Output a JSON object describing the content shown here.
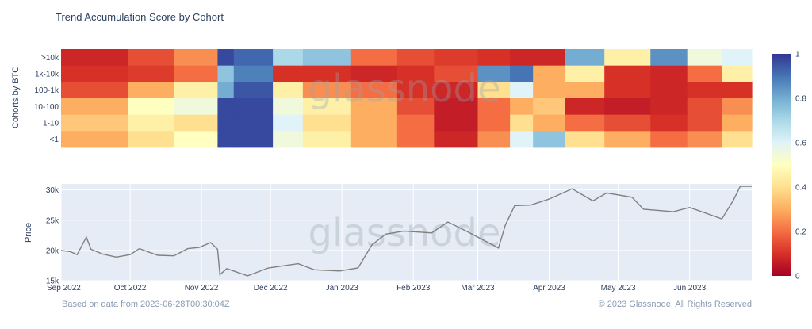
{
  "title": "Trend Accumulation Score by Cohort",
  "watermark": "glassnode",
  "footer": {
    "based_on": "Based on data from 2023-06-28T00:30:04Z",
    "copyright": "© 2023 Glassnode. All Rights Reserved"
  },
  "chart_data": [
    {
      "type": "heatmap",
      "ylabel": "Cohorts by BTC",
      "rows": [
        ">10k",
        "1k-10k",
        "100-1k",
        "10-100",
        "1-10",
        "<1"
      ],
      "x_start": "2022-09-01",
      "x_end": "2023-06-28",
      "zlim": [
        0,
        1
      ],
      "colorbar_ticks": [
        "0",
        "0.2",
        "0.4",
        "0.6",
        "0.8",
        "1"
      ],
      "colorscale": [
        "#a50026",
        "#d73027",
        "#f46d43",
        "#fdae61",
        "#fee090",
        "#ffffbf",
        "#e0f3f8",
        "#abd9e9",
        "#74add1",
        "#4575b4",
        "#313695"
      ],
      "segments": [
        {
          "end": "2022-09-30",
          "values": [
            0.08,
            0.1,
            0.15,
            0.3,
            0.35,
            0.3
          ]
        },
        {
          "end": "2022-10-20",
          "values": [
            0.15,
            0.12,
            0.3,
            0.5,
            0.45,
            0.4
          ]
        },
        {
          "end": "2022-11-08",
          "values": [
            0.25,
            0.2,
            0.45,
            0.55,
            0.4,
            0.5
          ]
        },
        {
          "end": "2022-11-15",
          "values": [
            0.97,
            0.75,
            0.8,
            0.97,
            0.97,
            0.97
          ]
        },
        {
          "end": "2022-12-02",
          "values": [
            0.92,
            0.88,
            0.95,
            0.97,
            0.97,
            0.97
          ]
        },
        {
          "end": "2022-12-15",
          "values": [
            0.7,
            0.1,
            0.45,
            0.55,
            0.6,
            0.55
          ]
        },
        {
          "end": "2023-01-05",
          "values": [
            0.75,
            0.1,
            0.25,
            0.45,
            0.4,
            0.45
          ]
        },
        {
          "end": "2023-01-25",
          "values": [
            0.2,
            0.08,
            0.2,
            0.3,
            0.3,
            0.3
          ]
        },
        {
          "end": "2023-02-10",
          "values": [
            0.15,
            0.1,
            0.1,
            0.15,
            0.2,
            0.2
          ]
        },
        {
          "end": "2023-03-01",
          "values": [
            0.12,
            0.15,
            0.08,
            0.06,
            0.06,
            0.08
          ]
        },
        {
          "end": "2023-03-15",
          "values": [
            0.1,
            0.85,
            0.4,
            0.2,
            0.2,
            0.25
          ]
        },
        {
          "end": "2023-03-25",
          "values": [
            0.08,
            0.9,
            0.6,
            0.3,
            0.4,
            0.6
          ]
        },
        {
          "end": "2023-04-08",
          "values": [
            0.08,
            0.3,
            0.3,
            0.35,
            0.3,
            0.75
          ]
        },
        {
          "end": "2023-04-25",
          "values": [
            0.8,
            0.45,
            0.3,
            0.08,
            0.2,
            0.4
          ]
        },
        {
          "end": "2023-05-15",
          "values": [
            0.45,
            0.1,
            0.1,
            0.06,
            0.15,
            0.3
          ]
        },
        {
          "end": "2023-05-31",
          "values": [
            0.85,
            0.08,
            0.08,
            0.08,
            0.1,
            0.2
          ]
        },
        {
          "end": "2023-06-15",
          "values": [
            0.55,
            0.2,
            0.1,
            0.15,
            0.15,
            0.25
          ]
        },
        {
          "end": "2023-06-28",
          "values": [
            0.6,
            0.45,
            0.1,
            0.25,
            0.3,
            0.4
          ]
        }
      ]
    },
    {
      "type": "line",
      "ylabel": "Price",
      "ylim": [
        15000,
        31000
      ],
      "y_ticks": [
        15000,
        20000,
        25000,
        30000
      ],
      "y_tick_labels": [
        "15k",
        "20k",
        "25k",
        "30k"
      ],
      "x_tick_dates": [
        "2022-09-01",
        "2022-10-01",
        "2022-11-01",
        "2022-12-01",
        "2023-01-01",
        "2023-02-01",
        "2023-03-01",
        "2023-04-01",
        "2023-05-01",
        "2023-06-01"
      ],
      "x_tick_labels": [
        "Sep 2022",
        "Oct 2022",
        "Nov 2022",
        "Dec 2022",
        "Jan 2023",
        "Feb 2023",
        "Mar 2023",
        "Apr 2023",
        "May 2023",
        "Jun 2023"
      ],
      "line_color": "#808080",
      "series": [
        {
          "x": [
            "2022-09-01",
            "2022-09-05",
            "2022-09-08",
            "2022-09-12",
            "2022-09-14",
            "2022-09-19",
            "2022-09-25",
            "2022-10-01",
            "2022-10-05",
            "2022-10-13",
            "2022-10-20",
            "2022-10-26",
            "2022-10-31",
            "2022-11-05",
            "2022-11-08",
            "2022-11-09",
            "2022-11-12",
            "2022-11-21",
            "2022-11-30",
            "2022-12-13",
            "2022-12-20",
            "2022-12-31",
            "2023-01-08",
            "2023-01-14",
            "2023-01-20",
            "2023-01-28",
            "2023-02-09",
            "2023-02-16",
            "2023-02-24",
            "2023-03-10",
            "2023-03-13",
            "2023-03-17",
            "2023-03-24",
            "2023-04-01",
            "2023-04-11",
            "2023-04-20",
            "2023-04-26",
            "2023-05-07",
            "2023-05-12",
            "2023-05-25",
            "2023-06-01",
            "2023-06-10",
            "2023-06-15",
            "2023-06-20",
            "2023-06-23",
            "2023-06-28"
          ],
          "y": [
            20000,
            19800,
            19300,
            22200,
            20200,
            19400,
            18900,
            19300,
            20300,
            19200,
            19100,
            20300,
            20500,
            21300,
            20200,
            16000,
            17000,
            15800,
            17100,
            17800,
            16800,
            16600,
            17100,
            20900,
            22700,
            23200,
            22900,
            24700,
            23200,
            20400,
            24200,
            27400,
            27500,
            28500,
            30200,
            28200,
            29500,
            28800,
            26800,
            26400,
            27100,
            25900,
            25200,
            28300,
            30600,
            30600
          ]
        }
      ]
    }
  ]
}
